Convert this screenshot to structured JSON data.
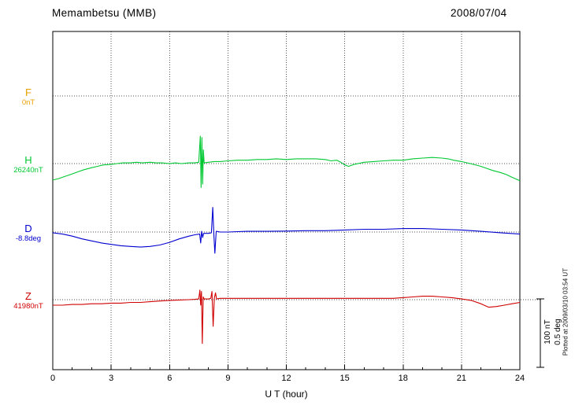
{
  "header": {
    "title": "Memambetsu (MMB)",
    "date": "2008/07/04"
  },
  "axis": {
    "xlabel": "U T (hour)"
  },
  "scale_bar": {
    "line1": "100 nT",
    "line2": "0.5 deg"
  },
  "note": "Plotted at 2009/03/10 03:54 UT",
  "chart_data": {
    "type": "line",
    "title": "Memambetsu (MMB) magnetogram 2008/07/04",
    "xlabel": "U T (hour)",
    "x_range": [
      0,
      24
    ],
    "x_ticks": [
      0,
      3,
      6,
      9,
      12,
      15,
      18,
      21,
      24
    ],
    "grid": {
      "vertical_dotted_at_hours": [
        3,
        6,
        9,
        12,
        15,
        18,
        21
      ],
      "horizontal_dotted": "one baseline per component"
    },
    "scale": {
      "pixels": 87,
      "nT": 100,
      "deg": 0.5
    },
    "legend_position": "left margin, one colored label per trace",
    "series": [
      {
        "name": "F",
        "baseline_label": "0nT",
        "unit": "nT",
        "color": "#E8A000",
        "points": []
      },
      {
        "name": "H",
        "baseline_label": "26240nT",
        "unit": "nT",
        "color": "#00C832",
        "points": [
          [
            0,
            -24
          ],
          [
            0.3,
            -22
          ],
          [
            0.6,
            -19
          ],
          [
            1,
            -15
          ],
          [
            1.3,
            -12
          ],
          [
            1.6,
            -9
          ],
          [
            2,
            -6
          ],
          [
            2.3,
            -4
          ],
          [
            2.6,
            -2
          ],
          [
            3,
            -1
          ],
          [
            3.3,
            0
          ],
          [
            3.6,
            1
          ],
          [
            4,
            1
          ],
          [
            4.3,
            2
          ],
          [
            4.6,
            1
          ],
          [
            5,
            2
          ],
          [
            5.3,
            1
          ],
          [
            5.6,
            1
          ],
          [
            6,
            0
          ],
          [
            6.3,
            1
          ],
          [
            6.6,
            0
          ],
          [
            7,
            1
          ],
          [
            7.3,
            1
          ],
          [
            7.5,
            2
          ],
          [
            7.58,
            40
          ],
          [
            7.62,
            -35
          ],
          [
            7.66,
            38
          ],
          [
            7.7,
            -30
          ],
          [
            7.74,
            20
          ],
          [
            7.78,
            1
          ],
          [
            8,
            2
          ],
          [
            8.3,
            3
          ],
          [
            8.6,
            3
          ],
          [
            9,
            4
          ],
          [
            9.5,
            5
          ],
          [
            10,
            5
          ],
          [
            10.5,
            6
          ],
          [
            11,
            6
          ],
          [
            11.5,
            7
          ],
          [
            12,
            6
          ],
          [
            12.5,
            7
          ],
          [
            13,
            7
          ],
          [
            13.5,
            7
          ],
          [
            14,
            6
          ],
          [
            14.3,
            4
          ],
          [
            14.6,
            5
          ],
          [
            14.8,
            2
          ],
          [
            15,
            -2
          ],
          [
            15.2,
            -4
          ],
          [
            15.5,
            -1
          ],
          [
            16,
            2
          ],
          [
            16.5,
            3
          ],
          [
            17,
            4
          ],
          [
            17.5,
            5
          ],
          [
            18,
            5
          ],
          [
            18.5,
            7
          ],
          [
            19,
            8
          ],
          [
            19.5,
            9
          ],
          [
            20,
            8
          ],
          [
            20.3,
            7
          ],
          [
            20.6,
            5
          ],
          [
            21,
            3
          ],
          [
            21.3,
            1
          ],
          [
            21.6,
            -1
          ],
          [
            22,
            -4
          ],
          [
            22.3,
            -7
          ],
          [
            22.6,
            -10
          ],
          [
            23,
            -13
          ],
          [
            23.3,
            -16
          ],
          [
            23.6,
            -20
          ],
          [
            24,
            -25
          ]
        ]
      },
      {
        "name": "D",
        "baseline_label": "-8.8deg",
        "unit": "deg",
        "color": "#0000D0",
        "points": [
          [
            0,
            -0.005
          ],
          [
            0.5,
            -0.015
          ],
          [
            1,
            -0.03
          ],
          [
            1.5,
            -0.05
          ],
          [
            2,
            -0.065
          ],
          [
            2.5,
            -0.08
          ],
          [
            3,
            -0.09
          ],
          [
            3.5,
            -0.1
          ],
          [
            4,
            -0.105
          ],
          [
            4.5,
            -0.11
          ],
          [
            5,
            -0.105
          ],
          [
            5.5,
            -0.095
          ],
          [
            6,
            -0.075
          ],
          [
            6.5,
            -0.05
          ],
          [
            7,
            -0.03
          ],
          [
            7.3,
            -0.02
          ],
          [
            7.55,
            -0.015
          ],
          [
            7.6,
            -0.08
          ],
          [
            7.65,
            0.005
          ],
          [
            7.7,
            -0.04
          ],
          [
            7.75,
            -0.01
          ],
          [
            8,
            -0.01
          ],
          [
            8.15,
            -0.005
          ],
          [
            8.22,
            0.18
          ],
          [
            8.28,
            -0.03
          ],
          [
            8.33,
            -0.155
          ],
          [
            8.4,
            0.005
          ],
          [
            8.6,
            0
          ],
          [
            9,
            0
          ],
          [
            9.5,
            0.003
          ],
          [
            10,
            0.005
          ],
          [
            11,
            0.005
          ],
          [
            12,
            0.007
          ],
          [
            13,
            0.01
          ],
          [
            14,
            0.01
          ],
          [
            15,
            0.015
          ],
          [
            16,
            0.02
          ],
          [
            17,
            0.02
          ],
          [
            18,
            0.025
          ],
          [
            19,
            0.025
          ],
          [
            20,
            0.02
          ],
          [
            21,
            0.015
          ],
          [
            22,
            0.005
          ],
          [
            23,
            -0.005
          ],
          [
            24,
            -0.015
          ]
        ]
      },
      {
        "name": "Z",
        "baseline_label": "41980nT",
        "unit": "nT",
        "color": "#D00000",
        "points": [
          [
            0,
            -8
          ],
          [
            0.5,
            -8
          ],
          [
            1,
            -7
          ],
          [
            1.5,
            -7
          ],
          [
            2,
            -6
          ],
          [
            2.5,
            -6
          ],
          [
            3,
            -5
          ],
          [
            3.5,
            -5
          ],
          [
            4,
            -4
          ],
          [
            4.5,
            -4
          ],
          [
            5,
            -3
          ],
          [
            5.5,
            -2
          ],
          [
            6,
            -1
          ],
          [
            6.5,
            -0.5
          ],
          [
            7,
            0
          ],
          [
            7.3,
            0.5
          ],
          [
            7.5,
            1
          ],
          [
            7.56,
            14
          ],
          [
            7.6,
            -8
          ],
          [
            7.64,
            12
          ],
          [
            7.68,
            -64
          ],
          [
            7.73,
            4
          ],
          [
            7.78,
            1
          ],
          [
            8,
            1
          ],
          [
            8.12,
            2
          ],
          [
            8.18,
            12
          ],
          [
            8.24,
            -39
          ],
          [
            8.3,
            2
          ],
          [
            8.36,
            10
          ],
          [
            8.42,
            1
          ],
          [
            8.6,
            2
          ],
          [
            9,
            2
          ],
          [
            9.5,
            2
          ],
          [
            10,
            2
          ],
          [
            11,
            2
          ],
          [
            12,
            2
          ],
          [
            13,
            2
          ],
          [
            14,
            2
          ],
          [
            15,
            2
          ],
          [
            16,
            2
          ],
          [
            17,
            2
          ],
          [
            17.5,
            2
          ],
          [
            18,
            3
          ],
          [
            18.5,
            4
          ],
          [
            19,
            5
          ],
          [
            19.5,
            5
          ],
          [
            20,
            4
          ],
          [
            20.5,
            3
          ],
          [
            21,
            1
          ],
          [
            21.5,
            -1
          ],
          [
            22,
            -6
          ],
          [
            22.4,
            -11
          ],
          [
            22.8,
            -10
          ],
          [
            23.2,
            -8
          ],
          [
            23.6,
            -6
          ],
          [
            24,
            -4
          ]
        ]
      }
    ]
  }
}
